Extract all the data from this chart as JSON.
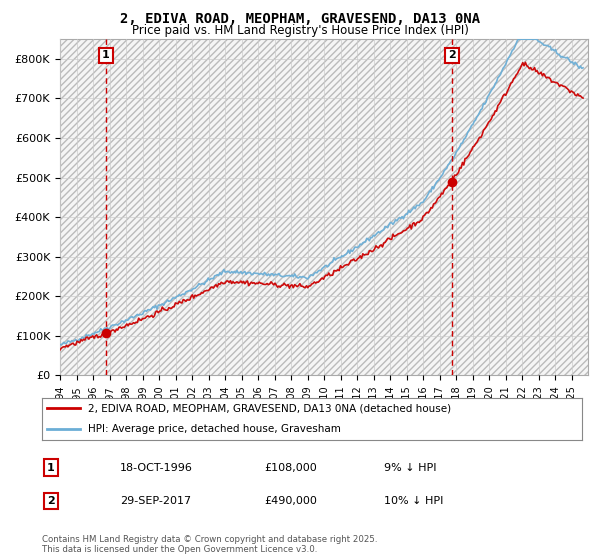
{
  "title": "2, EDIVA ROAD, MEOPHAM, GRAVESEND, DA13 0NA",
  "subtitle": "Price paid vs. HM Land Registry's House Price Index (HPI)",
  "ylabel_ticks": [
    "£0",
    "£100K",
    "£200K",
    "£300K",
    "£400K",
    "£500K",
    "£600K",
    "£700K",
    "£800K"
  ],
  "ytick_values": [
    0,
    100000,
    200000,
    300000,
    400000,
    500000,
    600000,
    700000,
    800000
  ],
  "ylim": [
    0,
    850000
  ],
  "xlim_start": 1994.0,
  "xlim_end": 2026.0,
  "hpi_color": "#6baed6",
  "price_color": "#cc0000",
  "marker_color": "#cc0000",
  "dashed_color": "#cc0000",
  "legend1_label": "2, EDIVA ROAD, MEOPHAM, GRAVESEND, DA13 0NA (detached house)",
  "legend2_label": "HPI: Average price, detached house, Gravesham",
  "annotation1_num": "1",
  "annotation1_date": "18-OCT-1996",
  "annotation1_price": "£108,000",
  "annotation1_pct": "9% ↓ HPI",
  "annotation2_num": "2",
  "annotation2_date": "29-SEP-2017",
  "annotation2_price": "£490,000",
  "annotation2_pct": "10% ↓ HPI",
  "footer": "Contains HM Land Registry data © Crown copyright and database right 2025.\nThis data is licensed under the Open Government Licence v3.0.",
  "sale1_year": 1996.79,
  "sale1_price": 108000,
  "sale2_year": 2017.75,
  "sale2_price": 490000
}
